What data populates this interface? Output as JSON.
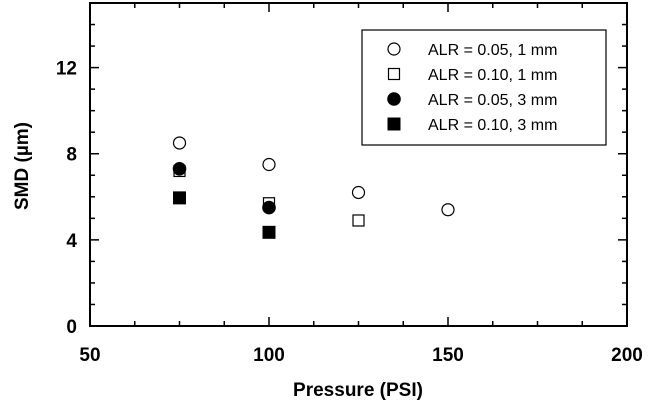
{
  "chart_data": {
    "type": "scatter",
    "xlabel": "Pressure (PSI)",
    "ylabel": "SMD (µm)",
    "xlim": [
      50,
      200
    ],
    "ylim": [
      0,
      15
    ],
    "xticks": [
      50,
      100,
      150,
      200
    ],
    "yticks": [
      0,
      4,
      8,
      12
    ],
    "grid": false,
    "legend_position": "top-right",
    "series": [
      {
        "name": "ALR = 0.05, 1 mm",
        "marker": "circle-open",
        "x": [
          75,
          100,
          125,
          150
        ],
        "y": [
          8.5,
          7.5,
          6.2,
          5.4
        ]
      },
      {
        "name": "ALR = 0.10, 1 mm",
        "marker": "square-open",
        "x": [
          75,
          100,
          125
        ],
        "y": [
          7.2,
          5.7,
          4.9
        ]
      },
      {
        "name": "ALR = 0.05, 3 mm",
        "marker": "circle-filled",
        "x": [
          75,
          100
        ],
        "y": [
          7.3,
          5.5
        ]
      },
      {
        "name": "ALR = 0.10, 3 mm",
        "marker": "square-filled",
        "x": [
          75,
          100
        ],
        "y": [
          5.95,
          4.35
        ]
      }
    ]
  }
}
